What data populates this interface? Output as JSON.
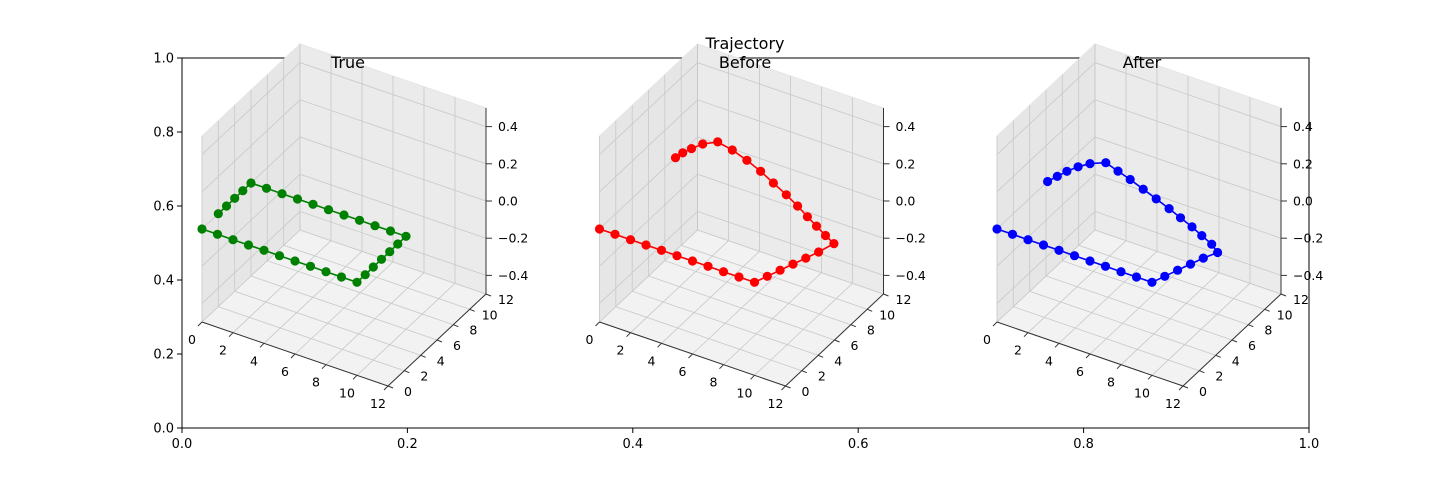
{
  "figure": {
    "suptitle": "Trajectory"
  },
  "outer_axes": {
    "xticks": [
      "0.0",
      "0.2",
      "0.4",
      "0.6",
      "0.8",
      "1.0"
    ],
    "yticks": [
      "0.0",
      "0.2",
      "0.4",
      "0.6",
      "0.8",
      "1.0"
    ],
    "xlim": [
      0,
      1
    ],
    "ylim": [
      0,
      1
    ]
  },
  "panel_ticks": {
    "x": [
      "0",
      "2",
      "4",
      "6",
      "8",
      "10",
      "12"
    ],
    "y": [
      "0",
      "2",
      "4",
      "6",
      "8",
      "10",
      "12"
    ],
    "z": [
      "0.4",
      "0.2",
      "0.0",
      "−0.2",
      "−0.4"
    ]
  },
  "chart_data": [
    {
      "type": "line",
      "projection": "3d",
      "title": "True",
      "color": "#008000",
      "marker": "circle",
      "xlim": [
        0,
        12
      ],
      "ylim": [
        0,
        12
      ],
      "zlim": [
        -0.5,
        0.5
      ],
      "x": [
        0,
        1,
        2,
        3,
        4,
        5,
        6,
        7,
        8,
        9,
        10,
        10,
        10,
        10,
        10,
        10,
        10,
        9,
        8,
        7,
        6,
        5,
        4,
        3,
        2,
        1,
        0,
        0,
        0,
        0,
        0
      ],
      "y": [
        0,
        0,
        0,
        0,
        0,
        0,
        0,
        0,
        0,
        0,
        0,
        1,
        2,
        3,
        4,
        5,
        6,
        6,
        6,
        6,
        6,
        6,
        6,
        6,
        6,
        6,
        6,
        5,
        4,
        3,
        2
      ],
      "z": [
        0,
        0,
        0,
        0,
        0,
        0,
        0,
        0,
        0,
        0,
        0,
        0,
        0,
        0,
        0,
        0,
        0,
        0,
        0,
        0,
        0,
        0,
        0,
        0,
        0,
        0,
        0,
        0,
        0,
        0,
        0
      ]
    },
    {
      "type": "line",
      "projection": "3d",
      "title": "Before",
      "color": "#ff0000",
      "marker": "circle",
      "xlim": [
        0,
        12
      ],
      "ylim": [
        0,
        12
      ],
      "zlim": [
        -0.5,
        0.5
      ],
      "x": [
        0,
        1,
        2,
        3,
        4,
        5,
        6,
        7,
        8,
        9,
        10,
        10.3,
        10.6,
        10.9,
        11.2,
        11.5,
        11.8,
        11.0,
        10.1,
        9.2,
        8.2,
        7.1,
        5.9,
        4.7,
        3.5,
        2.3,
        1.2,
        0.6,
        0.3,
        0.1,
        0.0
      ],
      "y": [
        0,
        0,
        0,
        0,
        0,
        0,
        0,
        0,
        0,
        0,
        0,
        1,
        2,
        3,
        4,
        5,
        6.3,
        6.8,
        7.4,
        8.0,
        8.7,
        9.4,
        10.1,
        10.8,
        11.4,
        11.9,
        12.2,
        11.5,
        10.7,
        10.0,
        9.3
      ],
      "z": [
        0,
        0,
        0,
        0,
        0,
        0,
        0,
        0,
        0,
        0,
        0,
        0,
        0,
        0,
        0,
        0,
        0,
        0,
        0,
        0,
        0,
        0,
        0,
        0,
        0,
        0,
        0,
        0,
        0,
        0,
        0
      ]
    },
    {
      "type": "line",
      "projection": "3d",
      "title": "After",
      "color": "#0000ff",
      "marker": "circle",
      "xlim": [
        0,
        12
      ],
      "ylim": [
        0,
        12
      ],
      "zlim": [
        -0.5,
        0.5
      ],
      "x": [
        0,
        1,
        2,
        3,
        4,
        5,
        6,
        7,
        8,
        9,
        10,
        10.3,
        10.6,
        10.9,
        11.2,
        11.6,
        10.9,
        10.0,
        9.1,
        8.1,
        7.1,
        6.0,
        4.9,
        3.8,
        2.8,
        1.8,
        1.1,
        0.7,
        0.4,
        0.2,
        0.0
      ],
      "y": [
        0,
        0,
        0,
        0,
        0,
        0,
        0,
        0,
        0,
        0,
        0,
        1,
        2,
        3,
        4,
        5,
        5.6,
        6.1,
        6.6,
        7.1,
        7.6,
        8.1,
        8.6,
        9.1,
        9.5,
        9.9,
        9.3,
        8.6,
        7.8,
        7.0,
        6.2
      ],
      "z": [
        0,
        0,
        0,
        0,
        0,
        0,
        0,
        0,
        0,
        0,
        0,
        0,
        0,
        0,
        0,
        0,
        0,
        0,
        0,
        0,
        0,
        0,
        0,
        0,
        0,
        0,
        0,
        0,
        0,
        0,
        0
      ]
    }
  ]
}
